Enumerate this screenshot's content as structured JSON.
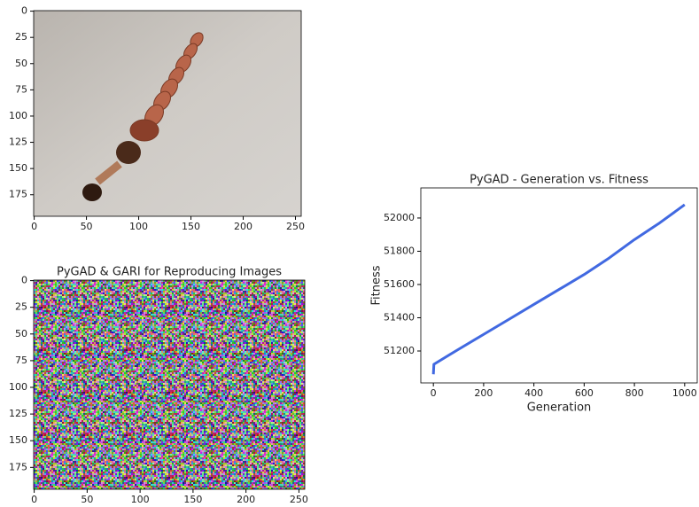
{
  "chart_data": [
    {
      "type": "image",
      "xlim": [
        -0.5,
        255.5
      ],
      "ylim": [
        195.5,
        -0.5
      ],
      "xticks": [
        0,
        50,
        100,
        150,
        200,
        250
      ],
      "yticks": [
        0,
        25,
        50,
        75,
        100,
        125,
        150,
        175
      ]
    },
    {
      "type": "image",
      "title": "PyGAD & GARI for Reproducing Images",
      "xlim": [
        -0.5,
        255.5
      ],
      "ylim": [
        195.5,
        -0.5
      ],
      "xticks": [
        0,
        50,
        100,
        150,
        200,
        250
      ],
      "yticks": [
        0,
        25,
        50,
        75,
        100,
        125,
        150,
        175
      ]
    },
    {
      "type": "line",
      "title": "PyGAD - Generation vs. Fitness",
      "x_label": "Generation",
      "y_label": "Fitness",
      "x": [
        0,
        2,
        100,
        200,
        300,
        400,
        500,
        600,
        700,
        800,
        900,
        1000
      ],
      "values": [
        51060,
        51120,
        51210,
        51300,
        51390,
        51480,
        51570,
        51660,
        51760,
        51870,
        51970,
        52080
      ],
      "color": "#4169e1",
      "xlim": [
        -50,
        1050
      ],
      "ylim": [
        51008,
        52181
      ],
      "xticks": [
        0,
        200,
        400,
        600,
        800,
        1000
      ],
      "yticks": [
        51200,
        51400,
        51600,
        51800,
        52000
      ]
    }
  ]
}
